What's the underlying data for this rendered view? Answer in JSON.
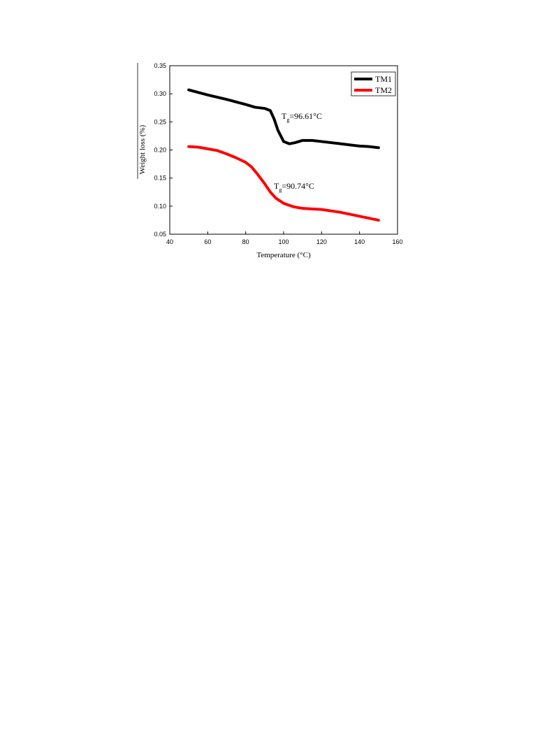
{
  "chart_data": {
    "type": "line",
    "x_label": "Temperature (°C)",
    "y_label": "Weight loss (%)",
    "xlim": [
      40,
      160
    ],
    "xticks": [
      40,
      60,
      80,
      100,
      120,
      140,
      160
    ],
    "ylim": [
      0.05,
      0.35
    ],
    "yticks": [
      0.05,
      {
        "value": 0.1,
        "label": "0.10"
      },
      0.15,
      {
        "value": 0.2,
        "label": "0.20"
      },
      0.25,
      {
        "value": 0.3,
        "label": "0.30"
      },
      0.35
    ],
    "legend": "top-right",
    "series": [
      {
        "name": "TM1",
        "color": "#000000",
        "x": [
          50,
          60,
          70,
          80,
          85,
          90,
          93,
          95,
          97,
          100,
          103,
          106,
          110,
          115,
          120,
          130,
          140,
          145,
          150
        ],
        "values": [
          0.307,
          0.298,
          0.29,
          0.281,
          0.276,
          0.274,
          0.27,
          0.255,
          0.235,
          0.215,
          0.211,
          0.213,
          0.217,
          0.217,
          0.215,
          0.211,
          0.207,
          0.206,
          0.204
        ]
      },
      {
        "name": "TM2",
        "color": "#ff0000",
        "x": [
          50,
          55,
          60,
          65,
          70,
          75,
          80,
          83,
          86,
          90,
          93,
          96,
          100,
          105,
          110,
          115,
          120,
          130,
          140,
          150
        ],
        "values": [
          0.206,
          0.205,
          0.202,
          0.199,
          0.193,
          0.186,
          0.178,
          0.17,
          0.158,
          0.14,
          0.125,
          0.114,
          0.105,
          0.099,
          0.096,
          0.095,
          0.094,
          0.089,
          0.082,
          0.075
        ]
      }
    ],
    "annotations": [
      {
        "main": "T",
        "sub": "g",
        "rest": "=96.61°C"
      },
      {
        "main": "T",
        "sub": "g",
        "rest": "=90.74°C"
      }
    ]
  }
}
